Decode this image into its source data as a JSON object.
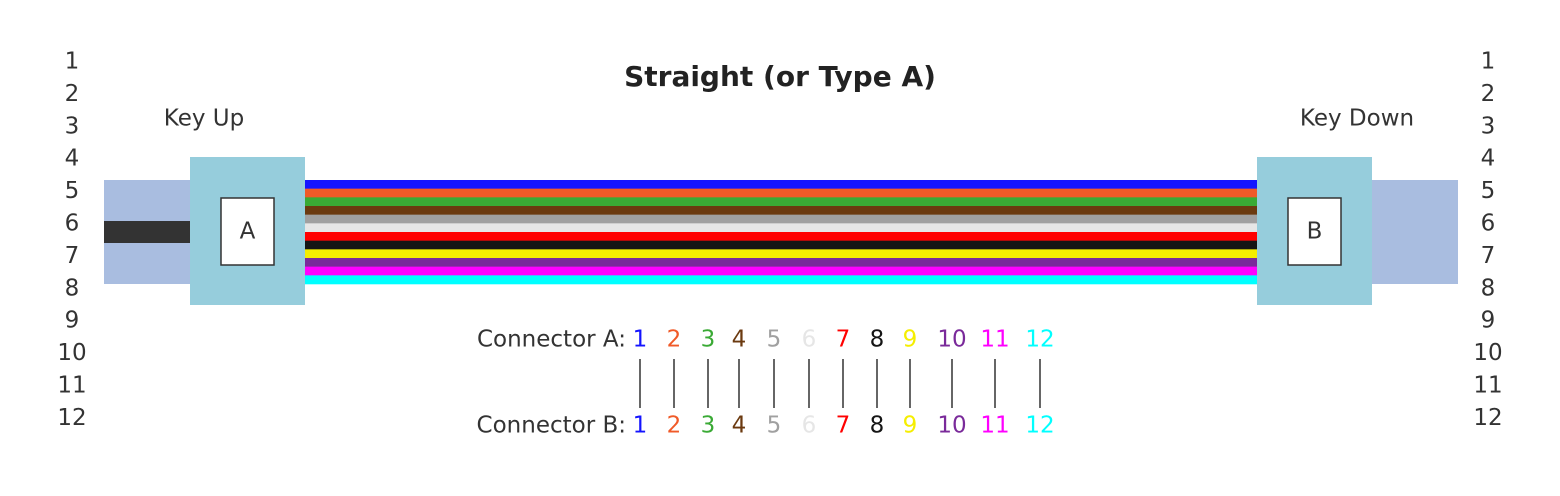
{
  "title": "Straight (or Type A)",
  "left_key": "Key Up",
  "right_key": "Key Down",
  "left_connector_label": "A",
  "right_connector_label": "B",
  "pin_numbers_left": [
    "1",
    "2",
    "3",
    "4",
    "5",
    "6",
    "7",
    "8",
    "9",
    "10",
    "11",
    "12"
  ],
  "pin_numbers_right": [
    "1",
    "2",
    "3",
    "4",
    "5",
    "6",
    "7",
    "8",
    "9",
    "10",
    "11",
    "12"
  ],
  "connector_a": {
    "label": "Connector A:",
    "fibers": [
      {
        "number": "1",
        "color": "#1414ff"
      },
      {
        "number": "2",
        "color": "#f05a28"
      },
      {
        "number": "3",
        "color": "#3aaa35"
      },
      {
        "number": "4",
        "color": "#6b3a10"
      },
      {
        "number": "5",
        "color": "#a0a0a0"
      },
      {
        "number": "6",
        "color": "#e6e6e6"
      },
      {
        "number": "7",
        "color": "#ff0000"
      },
      {
        "number": "8",
        "color": "#151515"
      },
      {
        "number": "9",
        "color": "#f5ee00"
      },
      {
        "number": "10",
        "color": "#7a2a9a"
      },
      {
        "number": "11",
        "color": "#ff00ff"
      },
      {
        "number": "12",
        "color": "#00ffff"
      }
    ]
  },
  "connector_b": {
    "label": "Connector B:",
    "fibers": [
      {
        "number": "1",
        "color": "#1414ff"
      },
      {
        "number": "2",
        "color": "#f05a28"
      },
      {
        "number": "3",
        "color": "#3aaa35"
      },
      {
        "number": "4",
        "color": "#6b3a10"
      },
      {
        "number": "5",
        "color": "#a0a0a0"
      },
      {
        "number": "6",
        "color": "#e6e6e6"
      },
      {
        "number": "7",
        "color": "#ff0000"
      },
      {
        "number": "8",
        "color": "#151515"
      },
      {
        "number": "9",
        "color": "#f5ee00"
      },
      {
        "number": "10",
        "color": "#7a2a9a"
      },
      {
        "number": "11",
        "color": "#ff00ff"
      },
      {
        "number": "12",
        "color": "#00ffff"
      }
    ]
  }
}
